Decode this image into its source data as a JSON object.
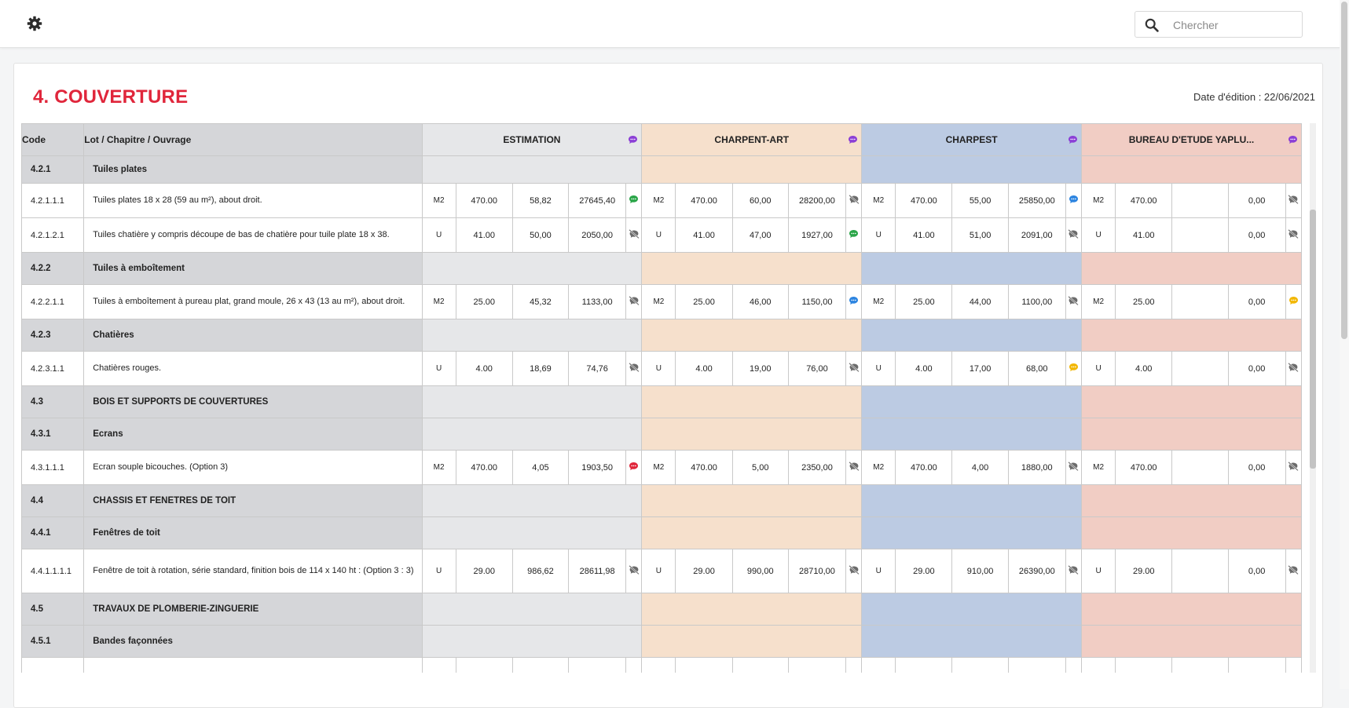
{
  "toolbar": {
    "settings_icon": "gear-icon"
  },
  "search": {
    "placeholder": "Chercher",
    "value": "",
    "icon": "search-icon"
  },
  "page": {
    "title": "4. COUVERTURE",
    "edit_date": "Date d'édition : 22/06/2021"
  },
  "table": {
    "headers": {
      "code": "Code",
      "desc": "Lot / Chapitre / Ouvrage"
    },
    "companies": [
      {
        "name": "ESTIMATION",
        "color": "#e6e7e9"
      },
      {
        "name": "CHARPENT-ART",
        "color": "#f6e0cc"
      },
      {
        "name": "CHARPEST",
        "color": "#bccbe3"
      },
      {
        "name": "BUREAU D'ETUDE YAPLU...",
        "color": "#f1cdc4"
      }
    ],
    "icon_colors": {
      "purple": "#8b3fd6",
      "green": "#2aa548",
      "blue": "#2c84e0",
      "red": "#e0263b",
      "yellow": "#f2b705",
      "muted": "#6b6b6b"
    },
    "rows": [
      {
        "kind": "sub1",
        "code": "4.2.1",
        "label": "Tuiles plates"
      },
      {
        "kind": "item",
        "code": "4.2.1.1.1",
        "label": "Tuiles plates 18 x 28 (59 au m²), about droit.",
        "cells": [
          {
            "u": "M2",
            "q": "470.00",
            "p": "58,82",
            "t": "27645,40",
            "icon": "green"
          },
          {
            "u": "M2",
            "q": "470.00",
            "p": "60,00",
            "t": "28200,00",
            "icon": "muted"
          },
          {
            "u": "M2",
            "q": "470.00",
            "p": "55,00",
            "t": "25850,00",
            "icon": "blue"
          },
          {
            "u": "M2",
            "q": "470.00",
            "p": "",
            "t": "0,00",
            "icon": "muted"
          }
        ]
      },
      {
        "kind": "item",
        "code": "4.2.1.2.1",
        "label": "Tuiles chatière y compris découpe de bas de chatière pour tuile plate 18 x 38.",
        "cells": [
          {
            "u": "U",
            "q": "41.00",
            "p": "50,00",
            "t": "2050,00",
            "icon": "muted"
          },
          {
            "u": "U",
            "q": "41.00",
            "p": "47,00",
            "t": "1927,00",
            "icon": "green"
          },
          {
            "u": "U",
            "q": "41.00",
            "p": "51,00",
            "t": "2091,00",
            "icon": "muted"
          },
          {
            "u": "U",
            "q": "41.00",
            "p": "",
            "t": "0,00",
            "icon": "muted"
          }
        ]
      },
      {
        "kind": "section",
        "code": "4.2.2",
        "label": "Tuiles à emboîtement"
      },
      {
        "kind": "item",
        "code": "4.2.2.1.1",
        "label": "Tuiles à emboîtement à pureau plat, grand moule, 26 x 43 (13 au m²), about droit.",
        "cells": [
          {
            "u": "M2",
            "q": "25.00",
            "p": "45,32",
            "t": "1133,00",
            "icon": "muted"
          },
          {
            "u": "M2",
            "q": "25.00",
            "p": "46,00",
            "t": "1150,00",
            "icon": "blue"
          },
          {
            "u": "M2",
            "q": "25.00",
            "p": "44,00",
            "t": "1100,00",
            "icon": "muted"
          },
          {
            "u": "M2",
            "q": "25.00",
            "p": "",
            "t": "0,00",
            "icon": "yellow"
          }
        ]
      },
      {
        "kind": "section",
        "code": "4.2.3",
        "label": "Chatières"
      },
      {
        "kind": "item",
        "code": "4.2.3.1.1",
        "label": "Chatières rouges.",
        "cells": [
          {
            "u": "U",
            "q": "4.00",
            "p": "18,69",
            "t": "74,76",
            "icon": "muted"
          },
          {
            "u": "U",
            "q": "4.00",
            "p": "19,00",
            "t": "76,00",
            "icon": "muted"
          },
          {
            "u": "U",
            "q": "4.00",
            "p": "17,00",
            "t": "68,00",
            "icon": "yellow"
          },
          {
            "u": "U",
            "q": "4.00",
            "p": "",
            "t": "0,00",
            "icon": "muted"
          }
        ]
      },
      {
        "kind": "section",
        "code": "4.3",
        "label": "BOIS ET SUPPORTS DE COUVERTURES"
      },
      {
        "kind": "section",
        "code": "4.3.1",
        "label": "Ecrans"
      },
      {
        "kind": "item",
        "code": "4.3.1.1.1",
        "label": "Ecran souple bicouches. (Option 3)",
        "cells": [
          {
            "u": "M2",
            "q": "470.00",
            "p": "4,05",
            "t": "1903,50",
            "icon": "red"
          },
          {
            "u": "M2",
            "q": "470.00",
            "p": "5,00",
            "t": "2350,00",
            "icon": "muted"
          },
          {
            "u": "M2",
            "q": "470.00",
            "p": "4,00",
            "t": "1880,00",
            "icon": "muted"
          },
          {
            "u": "M2",
            "q": "470.00",
            "p": "",
            "t": "0,00",
            "icon": "muted"
          }
        ]
      },
      {
        "kind": "section",
        "code": "4.4",
        "label": "CHASSIS ET FENETRES DE TOIT"
      },
      {
        "kind": "section",
        "code": "4.4.1",
        "label": "Fenêtres de toit"
      },
      {
        "kind": "item",
        "tall": true,
        "code": "4.4.1.1.1.1",
        "label": "Fenêtre de toit à rotation, série standard, finition bois de 114 x 140 ht : (Option 3 : 3)",
        "cells": [
          {
            "u": "U",
            "q": "29.00",
            "p": "986,62",
            "t": "28611,98",
            "icon": "muted"
          },
          {
            "u": "U",
            "q": "29.00",
            "p": "990,00",
            "t": "28710,00",
            "icon": "muted"
          },
          {
            "u": "U",
            "q": "29.00",
            "p": "910,00",
            "t": "26390,00",
            "icon": "muted"
          },
          {
            "u": "U",
            "q": "29.00",
            "p": "",
            "t": "0,00",
            "icon": "muted"
          }
        ]
      },
      {
        "kind": "section",
        "code": "4.5",
        "label": "TRAVAUX DE PLOMBERIE-ZINGUERIE"
      },
      {
        "kind": "section",
        "code": "4.5.1",
        "label": "Bandes façonnées"
      },
      {
        "kind": "item",
        "code": "",
        "label": "",
        "cells": [
          {
            "u": "",
            "q": "",
            "p": "",
            "t": "",
            "icon": "none"
          },
          {
            "u": "",
            "q": "",
            "p": "",
            "t": "",
            "icon": "none"
          },
          {
            "u": "",
            "q": "",
            "p": "",
            "t": "",
            "icon": "none"
          },
          {
            "u": "",
            "q": "",
            "p": "",
            "t": "",
            "icon": "none"
          }
        ]
      }
    ]
  }
}
